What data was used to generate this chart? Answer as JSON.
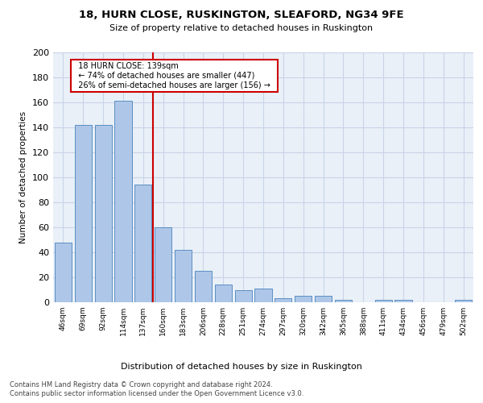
{
  "title1": "18, HURN CLOSE, RUSKINGTON, SLEAFORD, NG34 9FE",
  "title2": "Size of property relative to detached houses in Ruskington",
  "xlabel": "Distribution of detached houses by size in Ruskington",
  "ylabel": "Number of detached properties",
  "categories": [
    "46sqm",
    "69sqm",
    "92sqm",
    "114sqm",
    "137sqm",
    "160sqm",
    "183sqm",
    "206sqm",
    "228sqm",
    "251sqm",
    "274sqm",
    "297sqm",
    "320sqm",
    "342sqm",
    "365sqm",
    "388sqm",
    "411sqm",
    "434sqm",
    "456sqm",
    "479sqm",
    "502sqm"
  ],
  "values": [
    48,
    142,
    142,
    161,
    94,
    60,
    42,
    25,
    14,
    10,
    11,
    3,
    5,
    5,
    2,
    0,
    2,
    2,
    0,
    0,
    2
  ],
  "bar_color": "#aec6e8",
  "bar_edgecolor": "#5a8fc2",
  "marker_line_color": "#cc0000",
  "annotation_line1": "18 HURN CLOSE: 139sqm",
  "annotation_line2": "← 74% of detached houses are smaller (447)",
  "annotation_line3": "26% of semi-detached houses are larger (156) →",
  "ylim": [
    0,
    200
  ],
  "yticks": [
    0,
    20,
    40,
    60,
    80,
    100,
    120,
    140,
    160,
    180,
    200
  ],
  "footnote1": "Contains HM Land Registry data © Crown copyright and database right 2024.",
  "footnote2": "Contains public sector information licensed under the Open Government Licence v3.0.",
  "bg_color": "#eaf0f8",
  "grid_color": "#c8d4e8"
}
